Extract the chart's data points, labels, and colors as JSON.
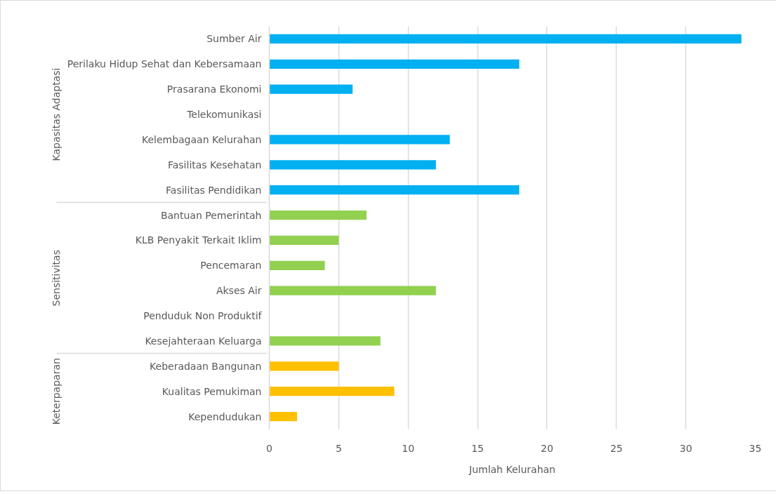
{
  "chart_data": {
    "type": "bar",
    "orientation": "horizontal",
    "xlabel": "Jumlah Kelurahan",
    "categories": [
      "Sumber Air",
      "Perilaku Hidup Sehat dan Kebersamaan",
      "Prasarana Ekonomi",
      "Telekomunikasi",
      "Kelembagaan Kelurahan",
      "Fasilitas Kesehatan",
      "Fasilitas Pendidikan",
      "Bantuan Pemerintah",
      "KLB Penyakit Terkait Iklim",
      "Pencemaran",
      "Akses Air",
      "Penduduk Non Produktif",
      "Kesejahteraan Keluarga",
      "Keberadaan Bangunan",
      "Kualitas Pemukiman",
      "Kependudukan"
    ],
    "values": [
      34,
      18,
      6,
      0,
      13,
      12,
      18,
      7,
      5,
      4,
      12,
      0,
      8,
      5,
      9,
      2
    ],
    "colors": [
      "#00b0f0",
      "#00b0f0",
      "#00b0f0",
      "#00b0f0",
      "#00b0f0",
      "#00b0f0",
      "#00b0f0",
      "#92d050",
      "#92d050",
      "#92d050",
      "#92d050",
      "#92d050",
      "#92d050",
      "#ffc000",
      "#ffc000",
      "#ffc000"
    ],
    "annotations": [
      "Kapasitas Adaptasi",
      "Sensitivitas",
      "Keterpaparan"
    ],
    "xlim": [
      0,
      35
    ],
    "xticks": [
      0,
      5,
      10,
      15,
      20,
      25,
      30,
      35
    ],
    "grid": "x"
  }
}
